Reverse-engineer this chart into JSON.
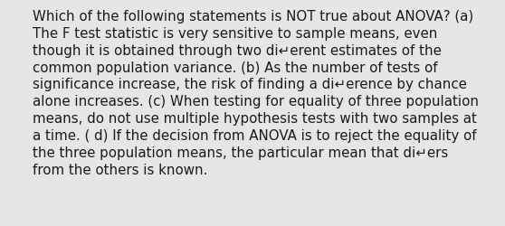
{
  "background_color": "#e6e6e6",
  "text_color": "#1a1a1a",
  "lines": [
    "Which of the following statements is NOT true about ANOVA? (a)",
    "The F test statistic is very sensitive to sample means, even",
    "though it is obtained through two di↵erent estimates of the",
    "common population variance. (b) As the number of tests of",
    "significance increase, the risk of finding a di↵erence by chance",
    "alone increases. (c) When testing for equality of three population",
    "means, do not use multiple hypothesis tests with two samples at",
    "a time. ( d) If the decision from ANOVA is to reject the equality of",
    "the three population means, the particular mean that di↵ers",
    "from the others is known."
  ],
  "font_size": 10.8,
  "fig_width": 5.58,
  "fig_height": 2.51,
  "dpi": 100
}
